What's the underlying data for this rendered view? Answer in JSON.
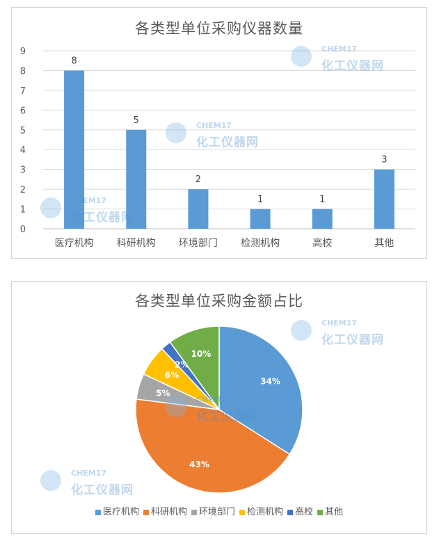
{
  "watermark": {
    "brand_top": "CHEM17",
    "brand_bottom": "化工仪器网"
  },
  "chart_data": [
    {
      "type": "bar",
      "title": "各类型单位采购仪器数量",
      "categories": [
        "医疗机构",
        "科研机构",
        "环境部门",
        "检测机构",
        "高校",
        "其他"
      ],
      "values": [
        8,
        5,
        2,
        1,
        1,
        3
      ],
      "ylim": [
        0,
        9
      ],
      "yticks": [
        0,
        1,
        2,
        3,
        4,
        5,
        6,
        7,
        8,
        9
      ],
      "grid": true,
      "color": "#5b9bd5"
    },
    {
      "type": "pie",
      "title": "各类型单位采购金额占比",
      "labels": [
        "医疗机构",
        "科研机构",
        "环境部门",
        "检测机构",
        "高校",
        "其他"
      ],
      "values": [
        34,
        43,
        5,
        6,
        2,
        10
      ],
      "value_labels": [
        "34%",
        "43%",
        "5%",
        "6%",
        "2%",
        "10%"
      ],
      "colors": [
        "#5b9bd5",
        "#ed7d31",
        "#a5a5a5",
        "#ffc000",
        "#4472c4",
        "#70ad47"
      ],
      "legend": "bottom"
    }
  ]
}
